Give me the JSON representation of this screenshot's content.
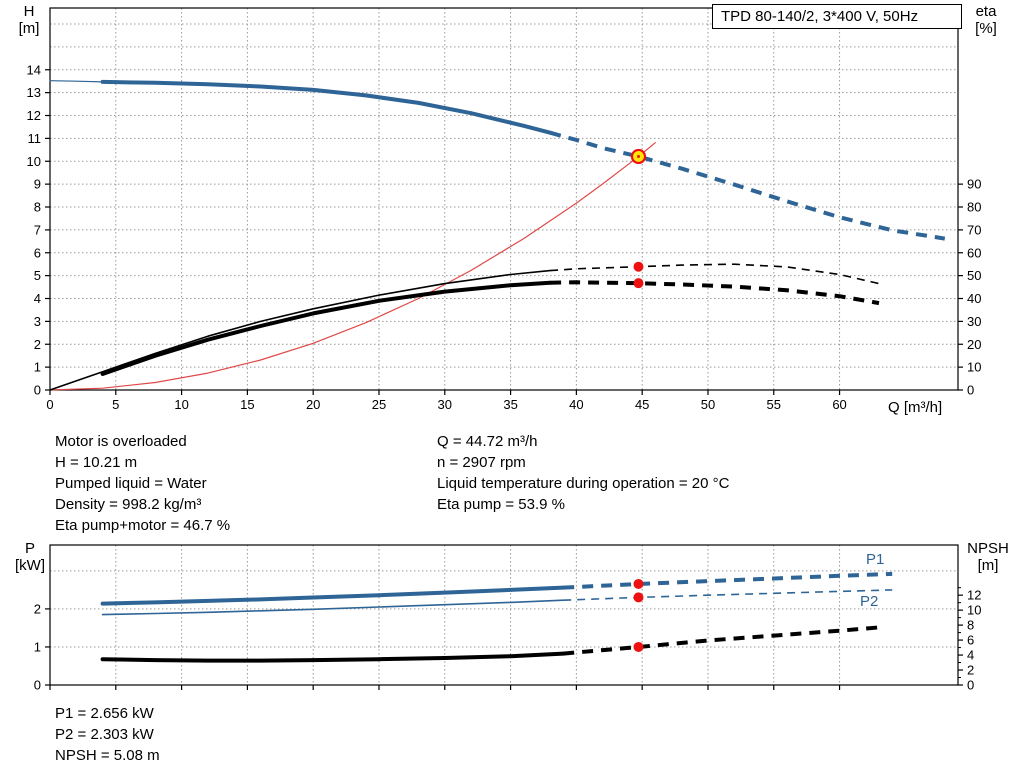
{
  "colors": {
    "curve_blue": "#2e6496",
    "curve_black": "#000000",
    "curve_red": "#e04848",
    "marker_red": "#ee1111",
    "marker_yellow": "#ffe60a",
    "grid": "#999999",
    "label_blue": "#2e6496"
  },
  "chart_data": [
    {
      "type": "line",
      "title": "TPD 80-140/2, 3*400 V, 50Hz",
      "axis_titles": {
        "left": [
          "H",
          "[m]"
        ],
        "right": [
          "eta",
          "[%]"
        ],
        "x": "Q [m³/h]"
      },
      "xlim": [
        0,
        69
      ],
      "ylim_left": [
        0,
        16.7
      ],
      "ylim_right": [
        0,
        167
      ],
      "x_ticks": [
        0,
        5,
        10,
        15,
        20,
        25,
        30,
        35,
        40,
        45,
        50,
        55,
        60
      ],
      "y_ticks_left": [
        0,
        1,
        2,
        3,
        4,
        5,
        6,
        7,
        8,
        9,
        10,
        11,
        12,
        13,
        14
      ],
      "y_grid_left": [
        1,
        2,
        3,
        4,
        5,
        6,
        7,
        8,
        9,
        10,
        11,
        12,
        13,
        14,
        15,
        16
      ],
      "y_ticks_right": [
        0,
        10,
        20,
        30,
        40,
        50,
        60,
        70,
        80,
        90
      ],
      "series": [
        {
          "name": "pump-curve-lead",
          "axis": "left",
          "color": "curve_blue",
          "width": 1.2,
          "dash_from": null,
          "points": [
            [
              0,
              13.52
            ],
            [
              2,
              13.5
            ],
            [
              4,
              13.47
            ]
          ]
        },
        {
          "name": "pump-curve",
          "axis": "left",
          "color": "curve_blue",
          "width": 4,
          "dash_from": 38,
          "points": [
            [
              4,
              13.47
            ],
            [
              8,
              13.43
            ],
            [
              12,
              13.37
            ],
            [
              16,
              13.27
            ],
            [
              20,
              13.12
            ],
            [
              24,
              12.88
            ],
            [
              28,
              12.55
            ],
            [
              32,
              12.1
            ],
            [
              36,
              11.55
            ],
            [
              38,
              11.25
            ],
            [
              40,
              10.93
            ],
            [
              42,
              10.58
            ],
            [
              44.72,
              10.21
            ],
            [
              48,
              9.68
            ],
            [
              52,
              8.98
            ],
            [
              56,
              8.25
            ],
            [
              60,
              7.55
            ],
            [
              64,
              6.98
            ],
            [
              68,
              6.62
            ]
          ]
        },
        {
          "name": "system-curve",
          "axis": "left",
          "color": "curve_red",
          "width": 1.2,
          "dash_from": null,
          "points": [
            [
              0,
              0
            ],
            [
              4,
              0.08
            ],
            [
              8,
              0.33
            ],
            [
              12,
              0.74
            ],
            [
              16,
              1.31
            ],
            [
              20,
              2.04
            ],
            [
              24,
              2.94
            ],
            [
              28,
              4.0
            ],
            [
              32,
              5.23
            ],
            [
              36,
              6.62
            ],
            [
              40,
              8.17
            ],
            [
              42,
              9.01
            ],
            [
              44,
              9.89
            ],
            [
              44.72,
              10.21
            ],
            [
              46,
              10.81
            ]
          ]
        },
        {
          "name": "eta-pump-curve",
          "axis": "right",
          "color": "curve_black",
          "width": 1.6,
          "dash_from": 38,
          "points": [
            [
              0,
              0
            ],
            [
              4,
              8
            ],
            [
              8,
              16
            ],
            [
              12,
              23.5
            ],
            [
              16,
              30
            ],
            [
              20,
              35.5
            ],
            [
              25,
              41.5
            ],
            [
              30,
              46.5
            ],
            [
              35,
              50.5
            ],
            [
              38,
              52.2
            ],
            [
              40,
              53
            ],
            [
              44.72,
              53.9
            ],
            [
              48,
              54.6
            ],
            [
              52,
              55
            ],
            [
              56,
              53.8
            ],
            [
              60,
              50.5
            ],
            [
              63,
              46.5
            ]
          ]
        },
        {
          "name": "eta-pump-motor-curve",
          "axis": "right",
          "color": "curve_black",
          "width": 4,
          "dash_from": 38,
          "points": [
            [
              4,
              7
            ],
            [
              8,
              15
            ],
            [
              12,
              22
            ],
            [
              16,
              28
            ],
            [
              20,
              33.5
            ],
            [
              25,
              39
            ],
            [
              30,
              43
            ],
            [
              35,
              45.8
            ],
            [
              38,
              46.9
            ],
            [
              40,
              47.1
            ],
            [
              44.72,
              46.7
            ],
            [
              48,
              46.1
            ],
            [
              52,
              45.2
            ],
            [
              56,
              43.6
            ],
            [
              60,
              41
            ],
            [
              63,
              38
            ]
          ]
        }
      ],
      "markers": [
        {
          "name": "duty-point",
          "style": "duty",
          "axis": "left",
          "x": 44.72,
          "y": 10.21
        },
        {
          "name": "eta-pump-point",
          "style": "dot",
          "axis": "right",
          "x": 44.72,
          "y": 53.9
        },
        {
          "name": "eta-pump-motor-point",
          "style": "dot",
          "axis": "right",
          "x": 44.72,
          "y": 46.7
        }
      ]
    },
    {
      "type": "line",
      "title": "",
      "axis_titles": {
        "left": [
          "P",
          "[kW]"
        ],
        "right": [
          "NPSH",
          "[m]"
        ],
        "x": ""
      },
      "xlim": [
        0,
        69
      ],
      "ylim_left": [
        0,
        3.68
      ],
      "ylim_right": [
        0,
        18.7
      ],
      "x_ticks": [
        0,
        5,
        10,
        15,
        20,
        25,
        30,
        35,
        40,
        45,
        50,
        55,
        60
      ],
      "x_tick_labels": false,
      "y_ticks_left": [
        0,
        1,
        2
      ],
      "y_grid_left": [
        1,
        2,
        3
      ],
      "y_ticks_right": [
        0,
        2,
        4,
        6,
        8,
        10,
        12
      ],
      "y_minor_right": [
        1,
        3,
        5,
        7,
        9,
        11,
        13
      ],
      "series": [
        {
          "name": "p1-curve",
          "axis": "left",
          "color": "curve_blue",
          "width": 4,
          "dash_from": 39,
          "points": [
            [
              4,
              2.14
            ],
            [
              8,
              2.17
            ],
            [
              12,
              2.21
            ],
            [
              16,
              2.25
            ],
            [
              20,
              2.3
            ],
            [
              25,
              2.36
            ],
            [
              30,
              2.43
            ],
            [
              35,
              2.5
            ],
            [
              39,
              2.56
            ],
            [
              44.72,
              2.656
            ],
            [
              50,
              2.73
            ],
            [
              55,
              2.8
            ],
            [
              60,
              2.87
            ],
            [
              64,
              2.92
            ]
          ]
        },
        {
          "name": "p2-curve",
          "axis": "left",
          "color": "curve_blue",
          "width": 1.6,
          "dash_from": 39,
          "points": [
            [
              4,
              1.85
            ],
            [
              8,
              1.88
            ],
            [
              12,
              1.91
            ],
            [
              16,
              1.95
            ],
            [
              20,
              1.99
            ],
            [
              25,
              2.05
            ],
            [
              30,
              2.11
            ],
            [
              35,
              2.17
            ],
            [
              39,
              2.23
            ],
            [
              44.72,
              2.303
            ],
            [
              50,
              2.36
            ],
            [
              55,
              2.41
            ],
            [
              60,
              2.46
            ],
            [
              64,
              2.5
            ]
          ]
        },
        {
          "name": "npsh-curve",
          "axis": "right",
          "color": "curve_black",
          "width": 4,
          "dash_from": 39,
          "points": [
            [
              4,
              3.45
            ],
            [
              8,
              3.32
            ],
            [
              12,
              3.26
            ],
            [
              16,
              3.26
            ],
            [
              20,
              3.32
            ],
            [
              25,
              3.45
            ],
            [
              30,
              3.6
            ],
            [
              35,
              3.85
            ],
            [
              39,
              4.2
            ],
            [
              44.72,
              5.08
            ],
            [
              50,
              5.95
            ],
            [
              55,
              6.6
            ],
            [
              60,
              7.25
            ],
            [
              63,
              7.7
            ]
          ]
        }
      ],
      "markers": [
        {
          "name": "p1-point",
          "style": "dot",
          "axis": "left",
          "x": 44.72,
          "y": 2.656
        },
        {
          "name": "p2-point",
          "style": "dot",
          "axis": "left",
          "x": 44.72,
          "y": 2.303
        },
        {
          "name": "npsh-point",
          "style": "dot",
          "axis": "right",
          "x": 44.72,
          "y": 5.08
        }
      ]
    }
  ],
  "curve_labels": {
    "p1": "P1",
    "p2": "P2"
  },
  "annotations": {
    "left": [
      "Motor is overloaded",
      "H = 10.21 m",
      "Pumped liquid = Water",
      "Density = 998.2 kg/m³",
      "Eta pump+motor = 46.7 %"
    ],
    "right": [
      "Q = 44.72 m³/h",
      "n = 2907 rpm",
      "Liquid temperature during operation = 20 °C",
      "Eta pump = 53.9 %"
    ],
    "bottom": [
      "P1 = 2.656 kW",
      "P2 = 2.303 kW",
      "NPSH = 5.08 m"
    ]
  }
}
